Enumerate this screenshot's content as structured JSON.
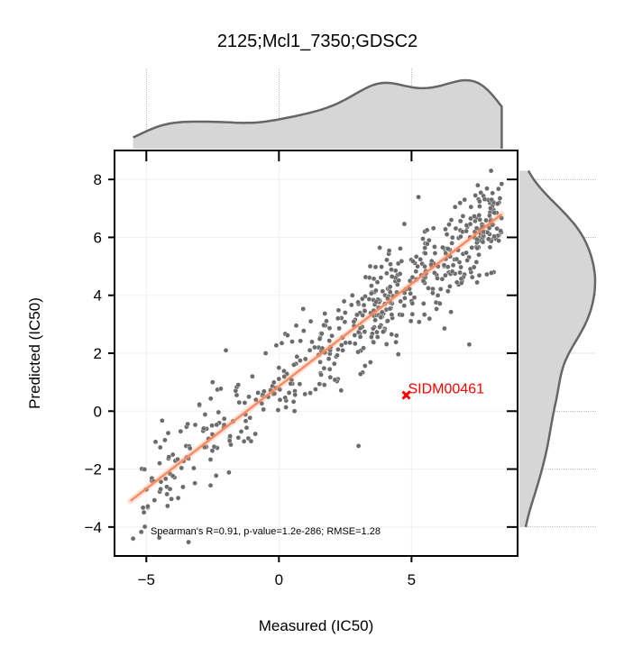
{
  "chart_data": {
    "type": "scatter",
    "title": "2125;Mcl1_7350;GDSC2",
    "xlabel": "Measured (IC50)",
    "ylabel": "Predicted (IC50)",
    "xlim": [
      -6.2,
      9.0
    ],
    "ylim": [
      -5.0,
      9.0
    ],
    "xticks": [
      -5,
      0,
      5
    ],
    "xtick_labels": [
      "−5",
      "0",
      "5"
    ],
    "yticks": [
      -4,
      -2,
      0,
      2,
      4,
      6,
      8
    ],
    "ytick_labels": [
      "−4",
      "−2",
      "0",
      "2",
      "4",
      "6",
      "8"
    ],
    "grid": true,
    "annotation": "Spearman's R=0.91, p-value=1.2e-286; RMSE=1.28",
    "highlight": {
      "label": "SIDM00461",
      "x": 4.8,
      "y": 0.55,
      "color": "#ff0000"
    },
    "fit_line": {
      "x": [
        -5.6,
        8.4
      ],
      "y": [
        -3.1,
        6.8
      ],
      "color": "#f58c64"
    },
    "marginal_color": "#d6d6d6",
    "marginal_edge": "#666666",
    "point_color": "#6b6b6b",
    "n_points": 560,
    "sample_points": [
      [
        -5.5,
        -4.4
      ],
      [
        -5.0,
        -2.7
      ],
      [
        -4.8,
        -2.4
      ],
      [
        -4.5,
        -1.8
      ],
      [
        -4.3,
        -1.0
      ],
      [
        -4.0,
        -1.5
      ],
      [
        -3.8,
        -3.0
      ],
      [
        -3.5,
        -1.2
      ],
      [
        -3.0,
        0.2
      ],
      [
        -2.5,
        1.0
      ],
      [
        -2.0,
        2.1
      ],
      [
        -1.5,
        0.3
      ],
      [
        -1.0,
        1.2
      ],
      [
        -0.5,
        2.0
      ],
      [
        0.0,
        1.5
      ],
      [
        0.5,
        2.4
      ],
      [
        1.0,
        1.8
      ],
      [
        1.2,
        3.1
      ],
      [
        1.5,
        2.2
      ],
      [
        2.0,
        2.6
      ],
      [
        2.5,
        3.4
      ],
      [
        3.0,
        -1.2
      ],
      [
        3.0,
        3.7
      ],
      [
        3.5,
        4.1
      ],
      [
        4.0,
        4.0
      ],
      [
        4.5,
        5.1
      ],
      [
        5.0,
        3.8
      ],
      [
        5.5,
        6.2
      ],
      [
        6.0,
        5.0
      ],
      [
        6.5,
        6.6
      ],
      [
        7.0,
        7.3
      ],
      [
        7.5,
        7.8
      ],
      [
        8.0,
        8.3
      ],
      [
        8.1,
        4.8
      ],
      [
        8.3,
        7.2
      ]
    ]
  }
}
